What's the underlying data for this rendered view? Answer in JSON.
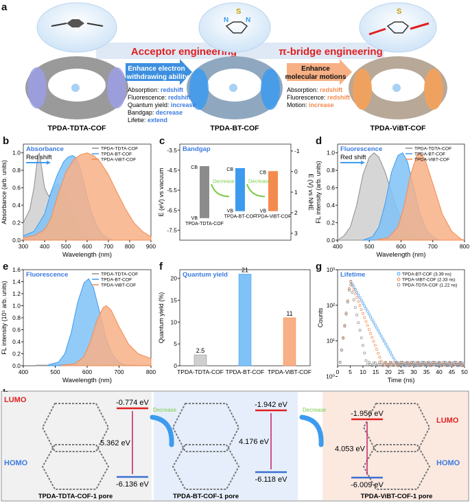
{
  "colors": {
    "gray": "#8c8c8c",
    "blue": "#3d9bef",
    "orange": "#f58a4f",
    "title_blue": "#3b7ae0",
    "red": "#e02020",
    "green": "#7ac943"
  },
  "panel_labels": [
    "a",
    "b",
    "c",
    "d",
    "e",
    "f",
    "g",
    "h"
  ],
  "panel_a": {
    "cof_names": [
      "TPDA-TDTA-COF",
      "TPDA-BT-COF",
      "TPDA-ViBT-COF"
    ],
    "acceptor_banner": "Acceptor engineering",
    "bridge_banner": "π-bridge engineering",
    "arrow1": [
      "Enhance electron",
      "-withdrawing ability"
    ],
    "arrow2": [
      "Enhance",
      "molecular motions"
    ],
    "props1": [
      {
        "label": "Absorption: ",
        "value": "redshift"
      },
      {
        "label": "Fluorescence: ",
        "value": "redshift"
      },
      {
        "label": "Quantum yield: ",
        "value": "increase"
      },
      {
        "label": "Bandgap: ",
        "value": "decrease"
      },
      {
        "label": "Lifetie: ",
        "value": "extend"
      }
    ],
    "props2": [
      {
        "label": "Absorption: ",
        "value": "redshift"
      },
      {
        "label": "Fluorescence: ",
        "value": "redshift"
      },
      {
        "label": "Motion: ",
        "value": "increase"
      }
    ],
    "atom_s": "S",
    "atom_n": "N"
  },
  "chart_data": [
    {
      "id": "b",
      "type": "area",
      "title": "Absorbance",
      "annotation": "Red shift",
      "xlabel": "Wavelength (nm)",
      "ylabel": "Absorbance (arb. units)",
      "xlim": [
        300,
        900
      ],
      "ylim": [
        0,
        1.1
      ],
      "xticks": [
        300,
        400,
        500,
        600,
        700,
        800,
        900
      ],
      "yticks": [
        0,
        0.2,
        0.4,
        0.6,
        0.8,
        1.0
      ],
      "legend": [
        "TPDA-TDTA-COF",
        "TPDA-BT-COF",
        "TPDA-ViBT-COF"
      ],
      "series": [
        {
          "name": "TPDA-TDTA-COF",
          "x": [
            300,
            330,
            350,
            365,
            375,
            385,
            400,
            420,
            440,
            460,
            480,
            500,
            520,
            540,
            560,
            580,
            600,
            620,
            640,
            660
          ],
          "y": [
            0.2,
            0.35,
            0.6,
            0.9,
            1.0,
            0.85,
            0.6,
            0.5,
            0.58,
            0.64,
            0.6,
            0.5,
            0.38,
            0.25,
            0.14,
            0.07,
            0.03,
            0.01,
            0,
            0
          ]
        },
        {
          "name": "TPDA-BT-COF",
          "x": [
            300,
            350,
            400,
            430,
            460,
            490,
            510,
            530,
            545,
            560,
            580,
            600,
            620,
            650,
            680,
            700,
            720
          ],
          "y": [
            0.05,
            0.1,
            0.3,
            0.55,
            0.75,
            0.9,
            0.95,
            0.97,
            0.95,
            0.88,
            0.7,
            0.5,
            0.32,
            0.14,
            0.05,
            0.02,
            0
          ]
        },
        {
          "name": "TPDA-ViBT-COF",
          "x": [
            300,
            350,
            400,
            430,
            460,
            500,
            540,
            570,
            600,
            630,
            660,
            700,
            740,
            780,
            820,
            860,
            900
          ],
          "y": [
            0.03,
            0.05,
            0.12,
            0.25,
            0.5,
            0.78,
            0.93,
            0.98,
            1.0,
            0.97,
            0.9,
            0.75,
            0.55,
            0.36,
            0.2,
            0.1,
            0.04
          ]
        }
      ]
    },
    {
      "id": "c",
      "type": "bar",
      "title": "Bandgap",
      "ylabel": "E (eV) vs vacuum",
      "ylabel_right": "E (V) vs NHE",
      "ylim": [
        -8,
        -3.2
      ],
      "yticks": [
        -3.5,
        -4.5,
        -5.5,
        -6.5,
        -7.5
      ],
      "yticks_right": [
        -1,
        0,
        1,
        2,
        3
      ],
      "arrow_label": "Decrease",
      "band_labels": [
        "CB",
        "VB"
      ],
      "bars": [
        {
          "name": "TPDA-TDTA-COF",
          "cb": -4.3,
          "vb": -6.9
        },
        {
          "name": "TPDA-BT-COF",
          "cb": -4.4,
          "vb": -6.55
        },
        {
          "name": "TPDA-ViBT-COF",
          "cb": -4.55,
          "vb": -6.55
        }
      ]
    },
    {
      "id": "d",
      "type": "area",
      "title": "Fluorescence",
      "annotation": "Red shift",
      "xlabel": "Wavelength (nm)",
      "ylabel": "FL intensity (arb. units)",
      "xlim": [
        400,
        800
      ],
      "ylim": [
        0,
        1.1
      ],
      "xticks": [
        400,
        500,
        600,
        700,
        800
      ],
      "yticks": [
        0,
        0.2,
        0.4,
        0.6,
        0.8,
        1.0
      ],
      "legend": [
        "TPDA-TDTA-COF",
        "TPDA-BT-COF",
        "TPDA-ViBT-COF"
      ],
      "series": [
        {
          "name": "TPDA-TDTA-COF",
          "x": [
            400,
            420,
            440,
            460,
            480,
            500,
            515,
            530,
            550,
            570,
            590,
            610,
            630,
            650,
            670,
            690
          ],
          "y": [
            0,
            0.05,
            0.15,
            0.4,
            0.75,
            0.95,
            1.0,
            0.95,
            0.78,
            0.55,
            0.33,
            0.17,
            0.07,
            0.02,
            0.01,
            0
          ]
        },
        {
          "name": "TPDA-BT-COF",
          "x": [
            480,
            510,
            530,
            550,
            570,
            590,
            605,
            620,
            640,
            660,
            680,
            700,
            720
          ],
          "y": [
            0,
            0.04,
            0.15,
            0.42,
            0.78,
            0.97,
            1.0,
            0.9,
            0.6,
            0.3,
            0.12,
            0.04,
            0
          ]
        },
        {
          "name": "TPDA-ViBT-COF",
          "x": [
            520,
            560,
            590,
            610,
            630,
            650,
            660,
            675,
            700,
            730,
            760,
            790,
            800
          ],
          "y": [
            0,
            0.03,
            0.15,
            0.4,
            0.75,
            0.97,
            1.0,
            0.93,
            0.65,
            0.3,
            0.1,
            0.01,
            0
          ]
        }
      ]
    },
    {
      "id": "e",
      "type": "area",
      "title": "Fluorescence",
      "xlabel": "Wavelength (nm)",
      "ylabel": "FL intensity (10⁵ arb. units)",
      "xlim": [
        400,
        800
      ],
      "ylim": [
        0,
        1.6
      ],
      "xticks": [
        400,
        500,
        600,
        700,
        800
      ],
      "yticks": [
        0,
        0.2,
        0.4,
        0.6,
        0.8,
        1.0,
        1.2,
        1.4,
        1.6
      ],
      "legend": [
        "TPDA-TDTA-COF",
        "TPDA-BT-COF",
        "TPDA-ViBT-COF"
      ],
      "series": [
        {
          "name": "TPDA-TDTA-COF",
          "x": [
            440,
            480,
            520,
            560,
            600,
            640,
            700,
            760,
            800
          ],
          "y": [
            0.01,
            0.01,
            0.02,
            0.02,
            0.03,
            0.02,
            0.02,
            0.01,
            0.01
          ]
        },
        {
          "name": "TPDA-BT-COF",
          "x": [
            480,
            510,
            530,
            550,
            570,
            590,
            605,
            620,
            640,
            660,
            680,
            700,
            720
          ],
          "y": [
            0.02,
            0.06,
            0.2,
            0.55,
            1.05,
            1.38,
            1.45,
            1.3,
            0.88,
            0.44,
            0.18,
            0.06,
            0.01
          ]
        },
        {
          "name": "TPDA-ViBT-COF",
          "x": [
            520,
            560,
            590,
            610,
            630,
            650,
            660,
            675,
            700,
            730,
            760,
            790,
            800
          ],
          "y": [
            0.01,
            0.03,
            0.15,
            0.4,
            0.75,
            0.97,
            1.0,
            0.93,
            0.65,
            0.36,
            0.2,
            0.14,
            0.12
          ]
        }
      ]
    },
    {
      "id": "f",
      "type": "bar",
      "title": "Quantum yield",
      "ylabel": "Quantum yield (%)",
      "ylim": [
        0,
        22
      ],
      "yticks": [
        0,
        5,
        10,
        15,
        20
      ],
      "categories": [
        "TPDA-TDTA-COF",
        "TPDA-BT-COF",
        "TPDA-ViBT-COF"
      ],
      "values": [
        2.5,
        21,
        11
      ],
      "value_labels": [
        "2.5",
        "21",
        "11"
      ]
    },
    {
      "id": "g",
      "type": "scatter",
      "title": "Lifetime",
      "xlabel": "Time (ns)",
      "ylabel": "Counts",
      "xlim": [
        0,
        50
      ],
      "ylim_log": [
        0.3,
        3
      ],
      "xticks": [
        0,
        5,
        10,
        15,
        20,
        25,
        30,
        35,
        40,
        45,
        50
      ],
      "yticks": [
        "10⁰",
        "10¹",
        "10²",
        "10³"
      ],
      "legend": [
        "TPDA-BT-COF (3.39 ns)",
        "TPDA-ViBT-COF (2.33 ns)",
        "TPDA-TDTA-COF (1.22 ns)"
      ],
      "series": [
        {
          "name": "TPDA-BT-COF",
          "peak": 2.7,
          "tau": 3.39
        },
        {
          "name": "TPDA-ViBT-COF",
          "peak": 2.7,
          "tau": 2.33
        },
        {
          "name": "TPDA-TDTA-COF",
          "peak": 2.65,
          "tau": 1.22
        }
      ]
    }
  ],
  "panel_h": {
    "blocks": [
      {
        "pore": "TPDA-TDTA-COF-1 pore",
        "lumo": "-0.774 eV",
        "gap": "5.362 eV",
        "homo": "-6.136 eV"
      },
      {
        "pore": "TPDA-BT-COF-1 pore",
        "lumo": "-1.942 eV",
        "gap": "4.176 eV",
        "homo": "-6.118 eV"
      },
      {
        "pore": "TPDA-ViBT-COF-1 pore",
        "lumo": "-1.956 eV",
        "gap": "4.053 eV",
        "homo": "-6.009 eV"
      }
    ],
    "lumo_label": "LUMO",
    "homo_label": "HOMO",
    "decrease": "Decrease"
  }
}
